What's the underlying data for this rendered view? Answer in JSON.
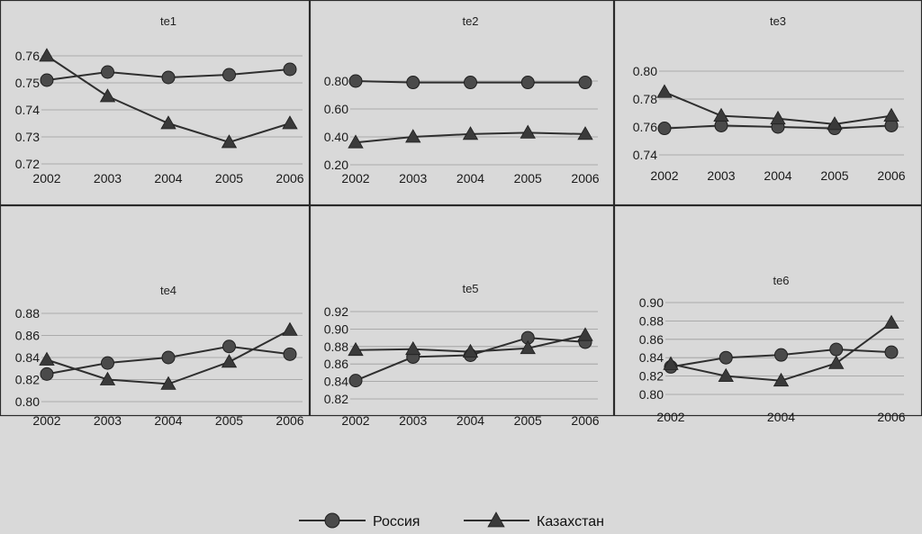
{
  "legend": {
    "russia": "Россия",
    "kazakhstan": "Казахстан"
  },
  "colors": {
    "background": "#d9d9d9",
    "line": "#2f2f2f",
    "frame": "#2a2a2a"
  },
  "chart_data": [
    {
      "type": "line",
      "title": "te1",
      "x": [
        2002,
        2003,
        2004,
        2005,
        2006
      ],
      "x_tick_labels": [
        "2002",
        "2003",
        "2004",
        "2005",
        "2006"
      ],
      "y_tick_labels": [
        "0.76",
        "0.75",
        "0.74",
        "0.73",
        "0.72"
      ],
      "ylim": [
        0.72,
        0.76
      ],
      "grid": true,
      "series": [
        {
          "name": "Россия",
          "marker": "circle",
          "values": [
            0.751,
            0.754,
            0.752,
            0.753,
            0.755
          ]
        },
        {
          "name": "Казахстан",
          "marker": "triangle",
          "values": [
            0.76,
            0.745,
            0.735,
            0.728,
            0.735
          ]
        }
      ]
    },
    {
      "type": "line",
      "title": "te2",
      "x": [
        2002,
        2003,
        2004,
        2005,
        2006
      ],
      "x_tick_labels": [
        "2002",
        "2003",
        "2004",
        "2005",
        "2006"
      ],
      "y_tick_labels": [
        "0.80",
        "0.60",
        "0.40",
        "0.20"
      ],
      "ylim": [
        0.2,
        0.8
      ],
      "grid": true,
      "series": [
        {
          "name": "Россия",
          "marker": "circle",
          "values": [
            0.8,
            0.79,
            0.79,
            0.79,
            0.79
          ]
        },
        {
          "name": "Казахстан",
          "marker": "triangle",
          "values": [
            0.36,
            0.4,
            0.42,
            0.43,
            0.42
          ]
        }
      ]
    },
    {
      "type": "line",
      "title": "te3",
      "x": [
        2002,
        2003,
        2004,
        2005,
        2006
      ],
      "x_tick_labels": [
        "2002",
        "2003",
        "2004",
        "2005",
        "2006"
      ],
      "y_tick_labels": [
        "0.80",
        "0.78",
        "0.76",
        "0.74"
      ],
      "ylim": [
        0.74,
        0.8
      ],
      "grid": true,
      "series": [
        {
          "name": "Россия",
          "marker": "circle",
          "values": [
            0.759,
            0.761,
            0.76,
            0.759,
            0.761
          ]
        },
        {
          "name": "Казахстан",
          "marker": "triangle",
          "values": [
            0.785,
            0.768,
            0.766,
            0.762,
            0.768
          ]
        }
      ]
    },
    {
      "type": "line",
      "title": "te4",
      "x": [
        2002,
        2003,
        2004,
        2005,
        2006
      ],
      "x_tick_labels": [
        "2002",
        "2003",
        "2004",
        "2005",
        "2006"
      ],
      "y_tick_labels": [
        "0.88",
        "0.86",
        "0.84",
        "0.82",
        "0.80"
      ],
      "ylim": [
        0.8,
        0.88
      ],
      "grid": true,
      "series": [
        {
          "name": "Россия",
          "marker": "circle",
          "values": [
            0.825,
            0.835,
            0.84,
            0.85,
            0.843
          ]
        },
        {
          "name": "Казахстан",
          "marker": "triangle",
          "values": [
            0.838,
            0.82,
            0.816,
            0.836,
            0.865
          ]
        }
      ]
    },
    {
      "type": "line",
      "title": "te5",
      "x": [
        2002,
        2003,
        2004,
        2005,
        2006
      ],
      "x_tick_labels": [
        "2002",
        "2003",
        "2004",
        "2005",
        "2006"
      ],
      "y_tick_labels": [
        "0.92",
        "0.90",
        "0.88",
        "0.86",
        "0.84",
        "0.82"
      ],
      "ylim": [
        0.82,
        0.92
      ],
      "grid": true,
      "series": [
        {
          "name": "Россия",
          "marker": "circle",
          "values": [
            0.841,
            0.868,
            0.87,
            0.89,
            0.885
          ]
        },
        {
          "name": "Казахстан",
          "marker": "triangle",
          "values": [
            0.876,
            0.877,
            0.874,
            0.878,
            0.893
          ]
        }
      ]
    },
    {
      "type": "line",
      "title": "te6",
      "x": [
        2002,
        2003,
        2004,
        2005,
        2006
      ],
      "x_tick_labels": [
        "2002",
        "",
        "2004",
        "",
        "2006"
      ],
      "y_tick_labels": [
        "0.90",
        "0.88",
        "0.86",
        "0.84",
        "0.82",
        "0.80"
      ],
      "ylim": [
        0.8,
        0.9
      ],
      "grid": true,
      "series": [
        {
          "name": "Россия",
          "marker": "circle",
          "values": [
            0.83,
            0.84,
            0.843,
            0.849,
            0.846
          ]
        },
        {
          "name": "Казахстан",
          "marker": "triangle",
          "values": [
            0.833,
            0.82,
            0.815,
            0.834,
            0.878
          ]
        }
      ]
    }
  ]
}
